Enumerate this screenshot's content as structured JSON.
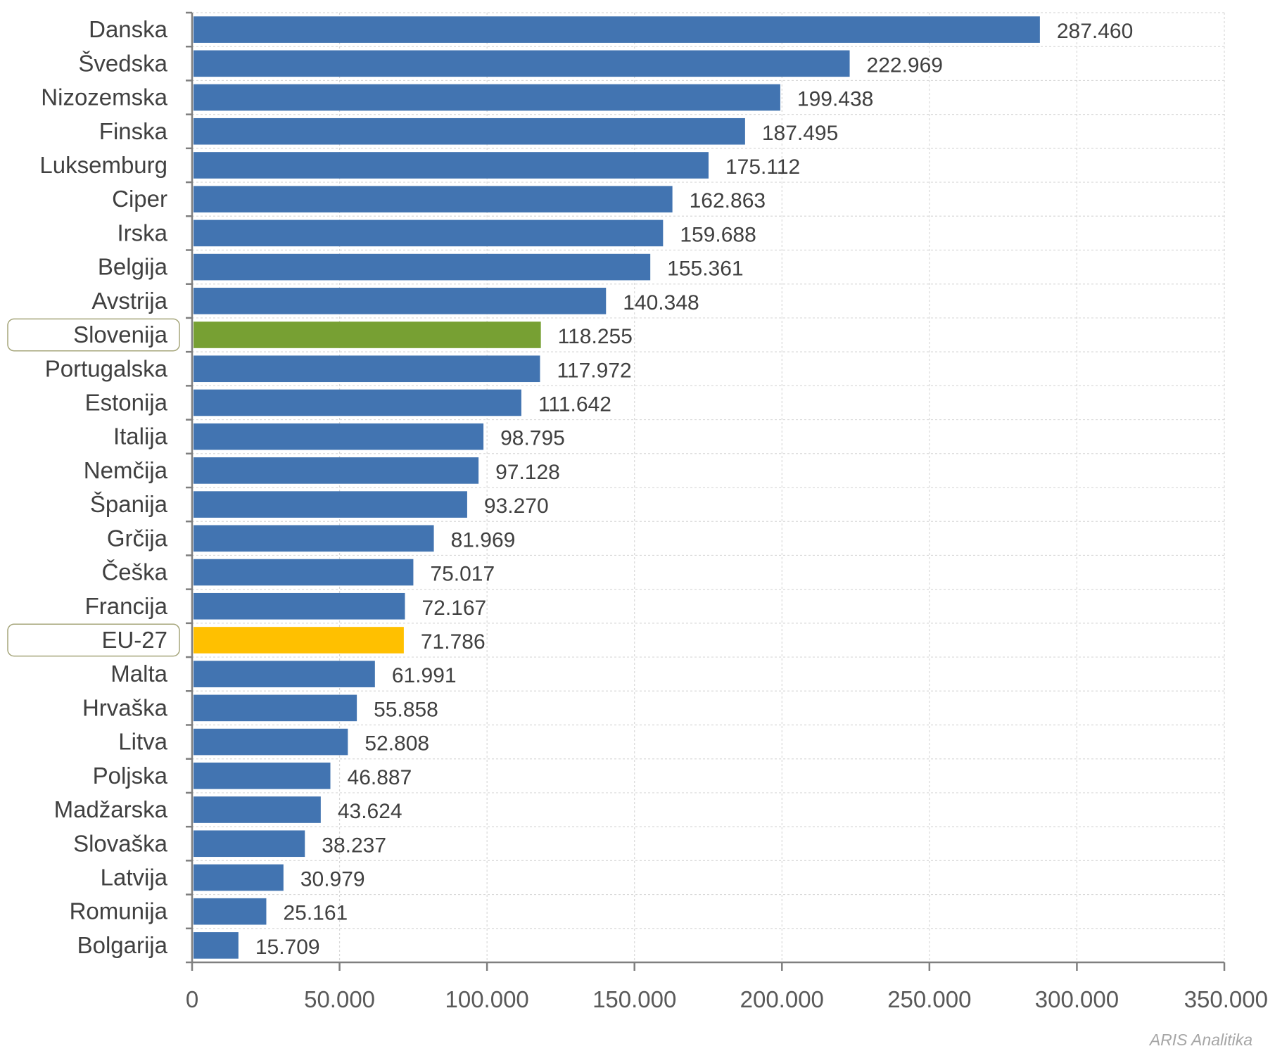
{
  "chart_data": {
    "type": "bar",
    "orientation": "horizontal",
    "categories": [
      "Danska",
      "Švedska",
      "Nizozemska",
      "Finska",
      "Luksemburg",
      "Ciper",
      "Irska",
      "Belgija",
      "Avstrija",
      "Slovenija",
      "Portugalska",
      "Estonija",
      "Italija",
      "Nemčija",
      "Španija",
      "Grčija",
      "Češka",
      "Francija",
      "EU-27",
      "Malta",
      "Hrvaška",
      "Litva",
      "Poljska",
      "Madžarska",
      "Slovaška",
      "Latvija",
      "Romunija",
      "Bolgarija"
    ],
    "values": [
      287460,
      222969,
      199438,
      187495,
      175112,
      162863,
      159688,
      155361,
      140348,
      118255,
      117972,
      111642,
      98795,
      97128,
      93270,
      81969,
      75017,
      72167,
      71786,
      61991,
      55858,
      52808,
      46887,
      43624,
      38237,
      30979,
      25161,
      15709
    ],
    "value_labels": [
      "287.460",
      "222.969",
      "199.438",
      "187.495",
      "175.112",
      "162.863",
      "159.688",
      "155.361",
      "140.348",
      "118.255",
      "117.972",
      "111.642",
      "98.795",
      "97.128",
      "93.270",
      "81.969",
      "75.017",
      "72.167",
      "71.786",
      "61.991",
      "55.858",
      "52.808",
      "46.887",
      "43.624",
      "38.237",
      "30.979",
      "25.161",
      "15.709"
    ],
    "highlighted": {
      "Slovenija": "#77a033",
      "EU-27": "#ffc000"
    },
    "xlim": [
      0,
      350000
    ],
    "x_ticks": [
      0,
      50000,
      100000,
      150000,
      200000,
      250000,
      300000,
      350000
    ],
    "x_tick_labels": [
      "0",
      "50.000",
      "100.000",
      "150.000",
      "200.000",
      "250.000",
      "300.000",
      "350.000"
    ],
    "grid": true,
    "title": "",
    "xlabel": "",
    "ylabel": ""
  },
  "colors": {
    "bar": "#4274b1",
    "slovenia": "#77a033",
    "eu27": "#ffc000",
    "grid": "#d9d9d9",
    "axis": "#7f7f7f",
    "highlight_box": "#a5a57a"
  },
  "footer": {
    "source": "ARIS Analitika"
  }
}
